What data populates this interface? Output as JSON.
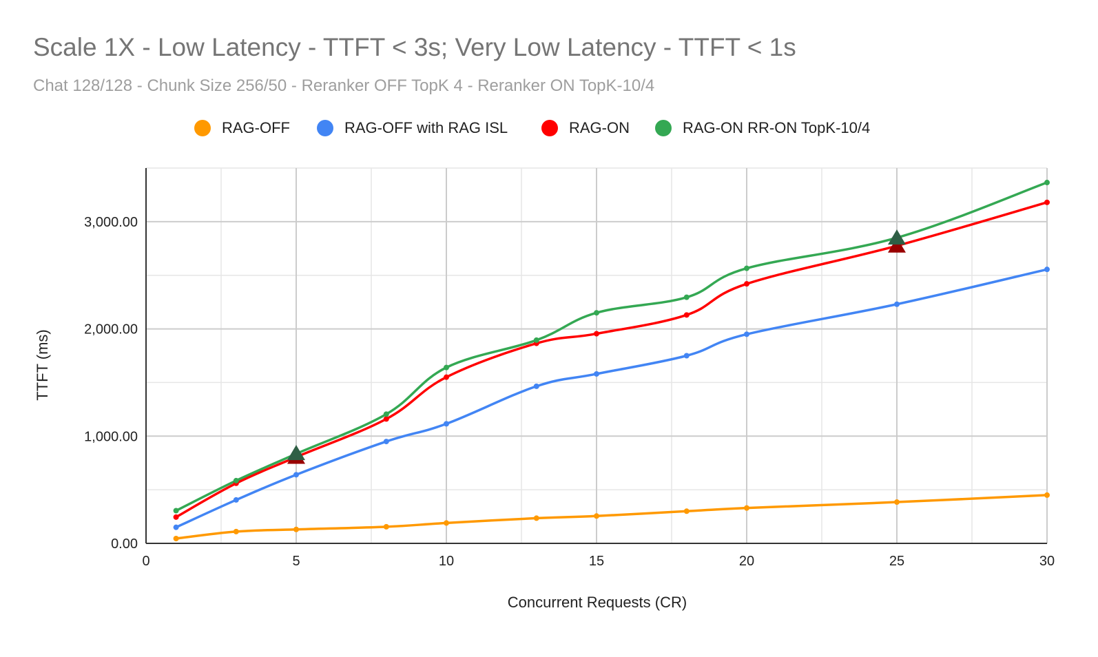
{
  "chart_data": {
    "type": "line",
    "title": "Scale 1X - Low Latency - TTFT < 3s; Very Low Latency - TTFT < 1s",
    "subtitle": "Chat 128/128 - Chunk Size 256/50 - Reranker OFF TopK 4 - Reranker ON TopK-10/4",
    "xlabel": "Concurrent Requests (CR)",
    "ylabel": "TTFT (ms)",
    "xlim": [
      0,
      30
    ],
    "ylim": [
      0,
      3500
    ],
    "x_ticks": [
      "0",
      "5",
      "10",
      "15",
      "20",
      "25",
      "30"
    ],
    "y_ticks": [
      "0.00",
      "1,000.00",
      "2,000.00",
      "3,000.00"
    ],
    "grid": true,
    "legend_position": "top",
    "x": [
      1,
      3,
      5,
      8,
      10,
      13,
      15,
      18,
      20,
      25,
      30
    ],
    "series": [
      {
        "name": "RAG-OFF",
        "color": "#ff9900",
        "values": [
          45,
          110,
          130,
          155,
          190,
          235,
          255,
          300,
          330,
          385,
          450
        ]
      },
      {
        "name": "RAG-OFF with RAG ISL",
        "color": "#4285f4",
        "values": [
          150,
          405,
          640,
          950,
          1115,
          1465,
          1580,
          1750,
          1950,
          2230,
          2555
        ]
      },
      {
        "name": "RAG-ON",
        "color": "#ff0000",
        "values": [
          245,
          560,
          805,
          1160,
          1550,
          1865,
          1955,
          2130,
          2420,
          2775,
          3180
        ]
      },
      {
        "name": "RAG-ON RR-ON TopK-10/4",
        "color": "#34a853",
        "values": [
          305,
          585,
          835,
          1205,
          1640,
          1895,
          2150,
          2295,
          2565,
          2850,
          3365
        ]
      }
    ],
    "annotations": [
      {
        "type": "triangle",
        "x": 5,
        "y": 805,
        "color": "#990000"
      },
      {
        "type": "triangle",
        "x": 5,
        "y": 840,
        "color": "#2f5f45"
      },
      {
        "type": "triangle",
        "x": 25,
        "y": 2775,
        "color": "#990000"
      },
      {
        "type": "triangle",
        "x": 25,
        "y": 2850,
        "color": "#2f5f45"
      }
    ]
  }
}
